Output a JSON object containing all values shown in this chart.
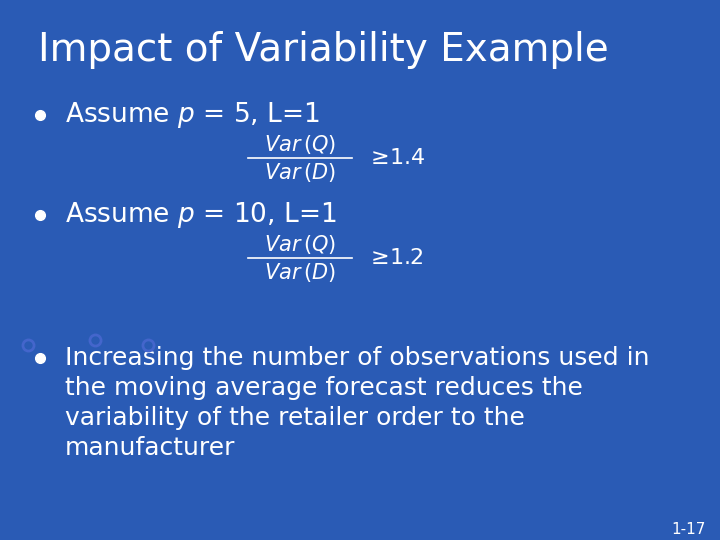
{
  "background_color": "#2A5BB5",
  "title": "Impact of Variability Example",
  "title_color": "#FFFFFF",
  "title_fontsize": 28,
  "bullet_color": "#FFFFFF",
  "bullet_fontsize": 19,
  "formula_fontsize": 15,
  "slide_num": "1-17",
  "curve_color": "#1A3A8A",
  "dot_color": "#4466CC",
  "bullet1_text": "Assume $p$ = 5, L=1",
  "bullet2_text": "Assume $p$ = 10, L=1",
  "formula1": "$\\dfrac{Var\\,(Q)}{Var\\,(D)} \\geq 1.4$",
  "formula2": "$\\dfrac{Var\\,(Q)}{Var\\,(D)} \\geq 1.2$",
  "bullet3_line1": "Increasing the number of observations used in",
  "bullet3_line2": "the moving average forecast reduces the",
  "bullet3_line3": "variability of the retailer order to the",
  "bullet3_line4": "manufacturer"
}
